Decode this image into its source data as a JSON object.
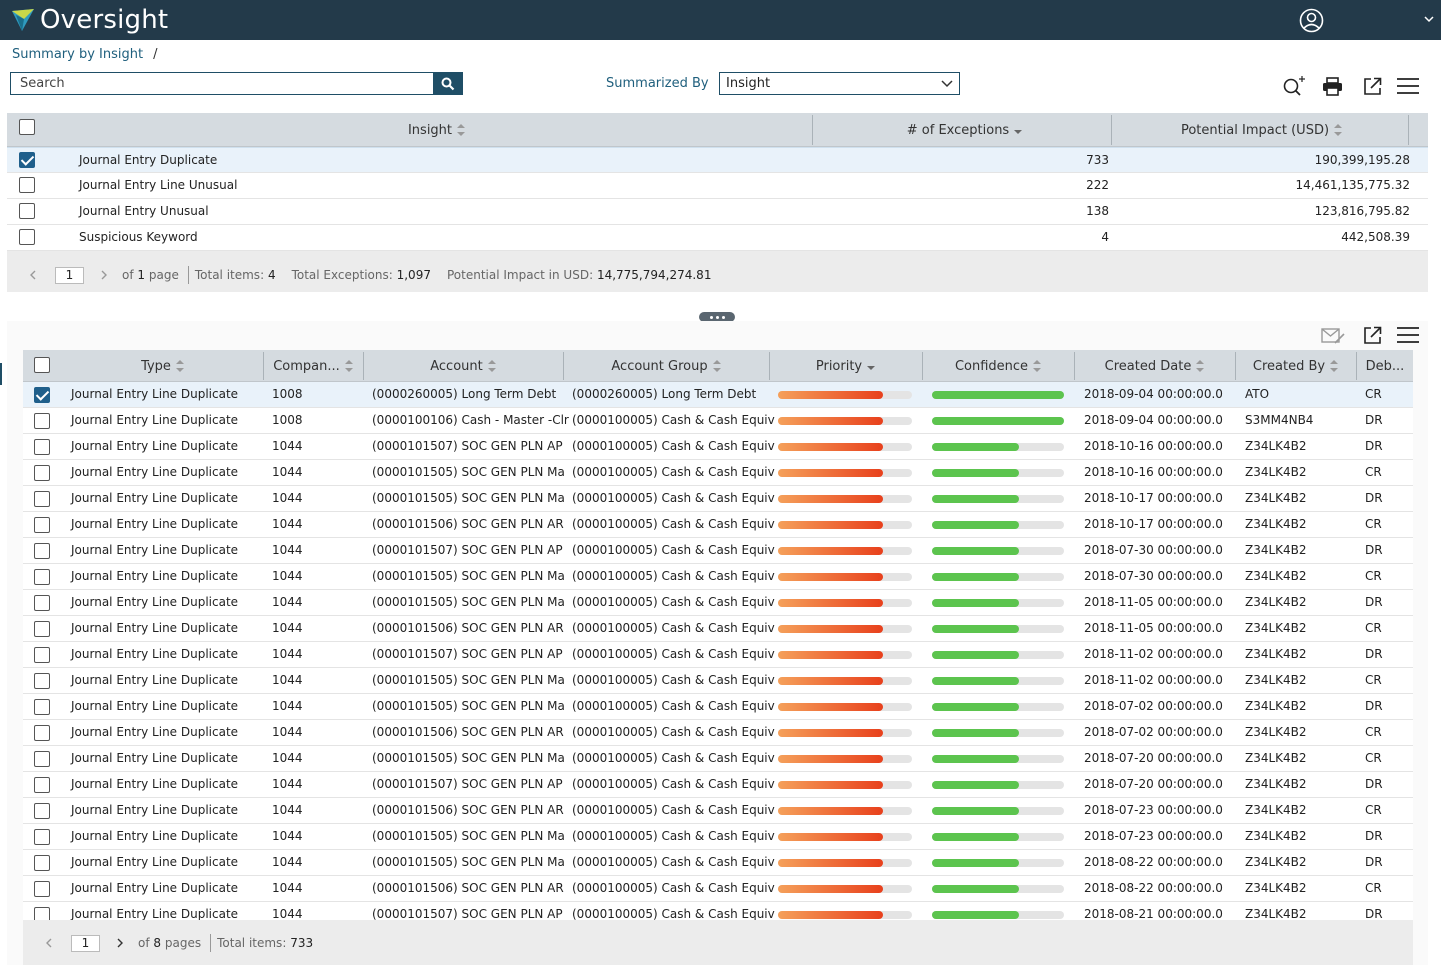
{
  "app": {
    "title": "Oversight"
  },
  "breadcrumb": {
    "link": "Summary by Insight",
    "sep": "/"
  },
  "search": {
    "placeholder": "Search"
  },
  "summarized": {
    "label": "Summarized By",
    "value": "Insight"
  },
  "upper": {
    "columns": {
      "insight": "Insight",
      "exceptions": "# of Exceptions",
      "impact": "Potential Impact (USD)"
    },
    "rows": [
      {
        "name": "Journal Entry Duplicate",
        "exceptions": "733",
        "impact": "190,399,195.28",
        "checked": true
      },
      {
        "name": "Journal Entry Line Unusual",
        "exceptions": "222",
        "impact": "14,461,135,775.32",
        "checked": false
      },
      {
        "name": "Journal Entry Unusual",
        "exceptions": "138",
        "impact": "123,816,795.82",
        "checked": false
      },
      {
        "name": "Suspicious Keyword",
        "exceptions": "4",
        "impact": "442,508.39",
        "checked": false
      }
    ],
    "pager": {
      "page": "1",
      "of_label": "of",
      "pages": "1",
      "page_word": "page",
      "total_items_label": "Total items:",
      "total_items": "4",
      "total_exc_label": "Total Exceptions:",
      "total_exc": "1,097",
      "impact_label": "Potential Impact in USD:",
      "impact": "14,775,794,274.81"
    }
  },
  "lower": {
    "columns": {
      "type": "Type",
      "company": "Compan...",
      "account": "Account",
      "group": "Account Group",
      "priority": "Priority",
      "confidence": "Confidence",
      "created_date": "Created Date",
      "created_by": "Created By",
      "debit": "Deb..."
    },
    "rows": [
      {
        "type": "Journal Entry Line Duplicate",
        "company": "1008",
        "account": "(0000260005) Long Term Debt",
        "group": "(0000260005) Long Term Debt",
        "priority": 0.78,
        "confidence": 1.0,
        "date": "2018-09-04 00:00:00.0",
        "by": "ATO",
        "dc": "CR",
        "checked": true
      },
      {
        "type": "Journal Entry Line Duplicate",
        "company": "1008",
        "account": "(0000100106) Cash - Master -Clr",
        "group": "(0000100005) Cash & Cash Equiv",
        "priority": 0.78,
        "confidence": 1.0,
        "date": "2018-09-04 00:00:00.0",
        "by": "S3MM4NB4",
        "dc": "DR",
        "checked": false
      },
      {
        "type": "Journal Entry Line Duplicate",
        "company": "1044",
        "account": "(0000101507) SOC GEN PLN AP",
        "group": "(0000100005) Cash & Cash Equiv",
        "priority": 0.78,
        "confidence": 0.66,
        "date": "2018-10-16 00:00:00.0",
        "by": "Z34LK4B2",
        "dc": "DR",
        "checked": false
      },
      {
        "type": "Journal Entry Line Duplicate",
        "company": "1044",
        "account": "(0000101505) SOC GEN PLN Ma",
        "group": "(0000100005) Cash & Cash Equiv",
        "priority": 0.78,
        "confidence": 0.66,
        "date": "2018-10-16 00:00:00.0",
        "by": "Z34LK4B2",
        "dc": "CR",
        "checked": false
      },
      {
        "type": "Journal Entry Line Duplicate",
        "company": "1044",
        "account": "(0000101505) SOC GEN PLN Ma",
        "group": "(0000100005) Cash & Cash Equiv",
        "priority": 0.78,
        "confidence": 0.66,
        "date": "2018-10-17 00:00:00.0",
        "by": "Z34LK4B2",
        "dc": "DR",
        "checked": false
      },
      {
        "type": "Journal Entry Line Duplicate",
        "company": "1044",
        "account": "(0000101506) SOC GEN PLN AR",
        "group": "(0000100005) Cash & Cash Equiv",
        "priority": 0.78,
        "confidence": 0.66,
        "date": "2018-10-17 00:00:00.0",
        "by": "Z34LK4B2",
        "dc": "CR",
        "checked": false
      },
      {
        "type": "Journal Entry Line Duplicate",
        "company": "1044",
        "account": "(0000101507) SOC GEN PLN AP",
        "group": "(0000100005) Cash & Cash Equiv",
        "priority": 0.78,
        "confidence": 0.66,
        "date": "2018-07-30 00:00:00.0",
        "by": "Z34LK4B2",
        "dc": "DR",
        "checked": false
      },
      {
        "type": "Journal Entry Line Duplicate",
        "company": "1044",
        "account": "(0000101505) SOC GEN PLN Ma",
        "group": "(0000100005) Cash & Cash Equiv",
        "priority": 0.78,
        "confidence": 0.66,
        "date": "2018-07-30 00:00:00.0",
        "by": "Z34LK4B2",
        "dc": "CR",
        "checked": false
      },
      {
        "type": "Journal Entry Line Duplicate",
        "company": "1044",
        "account": "(0000101505) SOC GEN PLN Ma",
        "group": "(0000100005) Cash & Cash Equiv",
        "priority": 0.78,
        "confidence": 0.66,
        "date": "2018-11-05 00:00:00.0",
        "by": "Z34LK4B2",
        "dc": "DR",
        "checked": false
      },
      {
        "type": "Journal Entry Line Duplicate",
        "company": "1044",
        "account": "(0000101506) SOC GEN PLN AR",
        "group": "(0000100005) Cash & Cash Equiv",
        "priority": 0.78,
        "confidence": 0.66,
        "date": "2018-11-05 00:00:00.0",
        "by": "Z34LK4B2",
        "dc": "CR",
        "checked": false
      },
      {
        "type": "Journal Entry Line Duplicate",
        "company": "1044",
        "account": "(0000101507) SOC GEN PLN AP",
        "group": "(0000100005) Cash & Cash Equiv",
        "priority": 0.78,
        "confidence": 0.66,
        "date": "2018-11-02 00:00:00.0",
        "by": "Z34LK4B2",
        "dc": "DR",
        "checked": false
      },
      {
        "type": "Journal Entry Line Duplicate",
        "company": "1044",
        "account": "(0000101505) SOC GEN PLN Ma",
        "group": "(0000100005) Cash & Cash Equiv",
        "priority": 0.78,
        "confidence": 0.66,
        "date": "2018-11-02 00:00:00.0",
        "by": "Z34LK4B2",
        "dc": "CR",
        "checked": false
      },
      {
        "type": "Journal Entry Line Duplicate",
        "company": "1044",
        "account": "(0000101505) SOC GEN PLN Ma",
        "group": "(0000100005) Cash & Cash Equiv",
        "priority": 0.78,
        "confidence": 0.66,
        "date": "2018-07-02 00:00:00.0",
        "by": "Z34LK4B2",
        "dc": "DR",
        "checked": false
      },
      {
        "type": "Journal Entry Line Duplicate",
        "company": "1044",
        "account": "(0000101506) SOC GEN PLN AR",
        "group": "(0000100005) Cash & Cash Equiv",
        "priority": 0.78,
        "confidence": 0.66,
        "date": "2018-07-02 00:00:00.0",
        "by": "Z34LK4B2",
        "dc": "CR",
        "checked": false
      },
      {
        "type": "Journal Entry Line Duplicate",
        "company": "1044",
        "account": "(0000101505) SOC GEN PLN Ma",
        "group": "(0000100005) Cash & Cash Equiv",
        "priority": 0.78,
        "confidence": 0.66,
        "date": "2018-07-20 00:00:00.0",
        "by": "Z34LK4B2",
        "dc": "CR",
        "checked": false
      },
      {
        "type": "Journal Entry Line Duplicate",
        "company": "1044",
        "account": "(0000101507) SOC GEN PLN AP",
        "group": "(0000100005) Cash & Cash Equiv",
        "priority": 0.78,
        "confidence": 0.66,
        "date": "2018-07-20 00:00:00.0",
        "by": "Z34LK4B2",
        "dc": "DR",
        "checked": false
      },
      {
        "type": "Journal Entry Line Duplicate",
        "company": "1044",
        "account": "(0000101506) SOC GEN PLN AR",
        "group": "(0000100005) Cash & Cash Equiv",
        "priority": 0.78,
        "confidence": 0.66,
        "date": "2018-07-23 00:00:00.0",
        "by": "Z34LK4B2",
        "dc": "CR",
        "checked": false
      },
      {
        "type": "Journal Entry Line Duplicate",
        "company": "1044",
        "account": "(0000101505) SOC GEN PLN Ma",
        "group": "(0000100005) Cash & Cash Equiv",
        "priority": 0.78,
        "confidence": 0.66,
        "date": "2018-07-23 00:00:00.0",
        "by": "Z34LK4B2",
        "dc": "DR",
        "checked": false
      },
      {
        "type": "Journal Entry Line Duplicate",
        "company": "1044",
        "account": "(0000101505) SOC GEN PLN Ma",
        "group": "(0000100005) Cash & Cash Equiv",
        "priority": 0.78,
        "confidence": 0.66,
        "date": "2018-08-22 00:00:00.0",
        "by": "Z34LK4B2",
        "dc": "DR",
        "checked": false
      },
      {
        "type": "Journal Entry Line Duplicate",
        "company": "1044",
        "account": "(0000101506) SOC GEN PLN AR",
        "group": "(0000100005) Cash & Cash Equiv",
        "priority": 0.78,
        "confidence": 0.66,
        "date": "2018-08-22 00:00:00.0",
        "by": "Z34LK4B2",
        "dc": "CR",
        "checked": false
      },
      {
        "type": "Journal Entry Line Duplicate",
        "company": "1044",
        "account": "(0000101507) SOC GEN PLN AP",
        "group": "(0000100005) Cash & Cash Equiv",
        "priority": 0.78,
        "confidence": 0.66,
        "date": "2018-08-21 00:00:00.0",
        "by": "Z34LK4B2",
        "dc": "DR",
        "checked": false
      }
    ],
    "pager": {
      "page": "1",
      "of_label": "of",
      "pages": "8",
      "page_word": "pages",
      "total_items_label": "Total items:",
      "total_items": "733"
    }
  },
  "icons": {
    "search": "search-icon",
    "add_search": "search-plus-icon",
    "print": "print-icon",
    "export": "external-link-icon",
    "menu": "hamburger-menu-icon",
    "email": "email-edit-icon",
    "user": "user-circle-icon"
  }
}
